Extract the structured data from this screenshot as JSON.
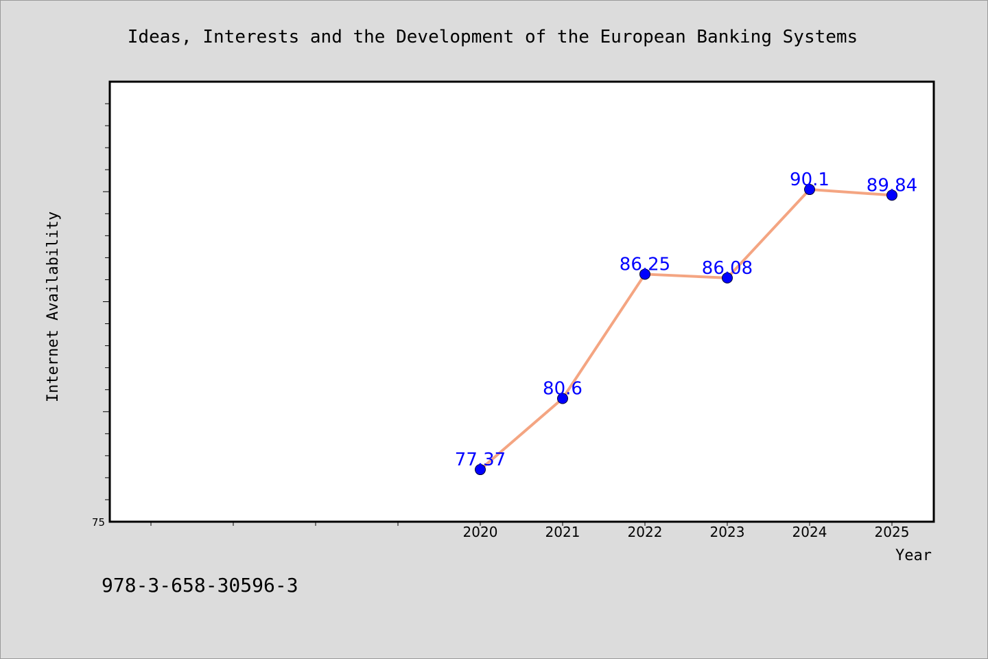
{
  "chart_data": {
    "type": "line",
    "title": "Ideas, Interests and the Development of the European Banking Systems",
    "xlabel": "Year",
    "ylabel": "Internet Availability",
    "categories": [
      "2020",
      "2021",
      "2022",
      "2023",
      "2024",
      "2025"
    ],
    "series": [
      {
        "values": [
          77.37,
          80.6,
          86.25,
          86.08,
          90.1,
          89.84
        ],
        "labels": [
          "77.37",
          "80.6",
          "86.25",
          "86.08",
          "90.1",
          "89.84"
        ],
        "line_color": "#f4a582",
        "marker_color": "#0000ff"
      }
    ],
    "y_tick_labels": [
      "75"
    ],
    "ylim": [
      75,
      95
    ],
    "grid": false,
    "data_label_color": "#0000ff"
  },
  "footer": {
    "isbn": "978-3-658-30596-3"
  }
}
